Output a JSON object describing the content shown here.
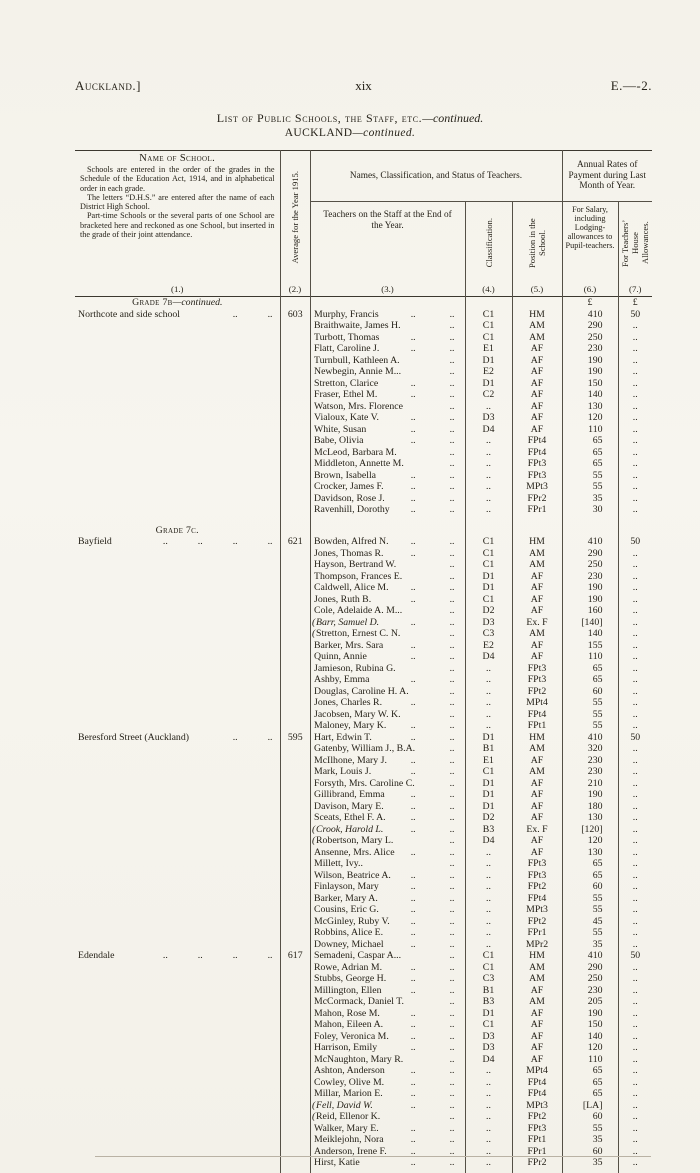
{
  "page_header": {
    "left": "Auckland.]",
    "center": "xix",
    "right": "E.—-2."
  },
  "title": {
    "main": "List of Public Schools, the Staff, etc.",
    "main_suffix": "—continued.",
    "sub": "AUCKLAND",
    "sub_suffix": "—continued."
  },
  "table": {
    "currency": "£",
    "columns": {
      "group_names": "Names, Classification, and Status of Teachers.",
      "group_payment": "Annual Rates of Payment during Last Month of Year.",
      "c1": {
        "title": "Name of School.",
        "notes": [
          "Schools are entered in the order of the grades in the Schedule of the Education Act, 1914, and in alphabetical order in each grade.",
          "The letters “D.H.S.” are entered after the name of each District High School.",
          "Part-time Schools or the several parts of one School are bracketed here and reckoned as one School, but inserted in the grade of their joint attendance."
        ],
        "num": "(1.)"
      },
      "c2": {
        "title": "Average for the Year 1915.",
        "num": "(2.)"
      },
      "c3": {
        "title": "Teachers on the Staff at the End of the Year.",
        "num": "(3.)"
      },
      "c4": {
        "title": "Classification.",
        "num": "(4.)"
      },
      "c5": {
        "title": "Position in the School.",
        "num": "(5.)"
      },
      "c6": {
        "title": "For Salary, including Lodging-allowances to Pupil-teachers.",
        "num": "(6.)"
      },
      "c7": {
        "title": "For Teachers’ House Allowances.",
        "num": "(7.)"
      }
    },
    "sections": [
      {
        "heading": {
          "label": "Grade 7b",
          "suffix": "—continued.",
          "show_currency": true
        },
        "schools": [
          {
            "name": "Northcote and side school",
            "dots": ".. ..",
            "average": "603",
            "teachers": [
              {
                "name": "Murphy, Francis",
                "dots": ".. ..",
                "cls": "C1",
                "pos": "HM",
                "salary": "410",
                "house": "50"
              },
              {
                "name": "Braithwaite, James H.",
                "dots": "..",
                "cls": "C1",
                "pos": "AM",
                "salary": "290",
                "house": ".."
              },
              {
                "name": "Turbott, Thomas",
                "dots": ".. ..",
                "cls": "C1",
                "pos": "AM",
                "salary": "250",
                "house": ".."
              },
              {
                "name": "Flatt, Caroline J.",
                "dots": ".. ..",
                "cls": "E1",
                "pos": "AF",
                "salary": "230",
                "house": ".."
              },
              {
                "name": "Turnbull, Kathleen A.",
                "dots": "..",
                "cls": "D1",
                "pos": "AF",
                "salary": "190",
                "house": ".."
              },
              {
                "name": "Newbegin, Annie M...",
                "dots": "..",
                "cls": "E2",
                "pos": "AF",
                "salary": "190",
                "house": ".."
              },
              {
                "name": "Stretton, Clarice",
                "dots": ".. ..",
                "cls": "D1",
                "pos": "AF",
                "salary": "150",
                "house": ".."
              },
              {
                "name": "Fraser, Ethel M.",
                "dots": ".. ..",
                "cls": "C2",
                "pos": "AF",
                "salary": "140",
                "house": ".."
              },
              {
                "name": "Watson, Mrs. Florence",
                "dots": "..",
                "cls": "..",
                "pos": "AF",
                "salary": "130",
                "house": ".."
              },
              {
                "name": "Vialoux, Kate V.",
                "dots": ".. ..",
                "cls": "D3",
                "pos": "AF",
                "salary": "120",
                "house": ".."
              },
              {
                "name": "White, Susan",
                "dots": ".. ..",
                "cls": "D4",
                "pos": "AF",
                "salary": "110",
                "house": ".."
              },
              {
                "name": "Babe, Olivia",
                "dots": ".. ..",
                "cls": "..",
                "pos": "FPt4",
                "salary": "65",
                "house": ".."
              },
              {
                "name": "McLeod, Barbara M.",
                "dots": "..",
                "cls": "..",
                "pos": "FPt4",
                "salary": "65",
                "house": ".."
              },
              {
                "name": "Middleton, Annette M.",
                "dots": "..",
                "cls": "..",
                "pos": "FPt3",
                "salary": "65",
                "house": ".."
              },
              {
                "name": "Brown, Isabella",
                "dots": ".. ..",
                "cls": "..",
                "pos": "FPt3",
                "salary": "55",
                "house": ".."
              },
              {
                "name": "Crocker, James F.",
                "dots": ".. ..",
                "cls": "..",
                "pos": "MPt3",
                "salary": "55",
                "house": ".."
              },
              {
                "name": "Davidson, Rose J.",
                "dots": ".. ..",
                "cls": "..",
                "pos": "FPr2",
                "salary": "35",
                "house": ".."
              },
              {
                "name": "Ravenhill, Dorothy",
                "dots": ".. ..",
                "cls": "..",
                "pos": "FPr1",
                "salary": "30",
                "house": ".."
              }
            ]
          }
        ]
      },
      {
        "heading": {
          "label": "Grade 7c.",
          "suffix": "",
          "show_currency": false
        },
        "schools": [
          {
            "name": "Bayfield",
            "dots": ".. .. .. ..",
            "average": "621",
            "teachers": [
              {
                "name": "Bowden, Alfred N.",
                "dots": ".. ..",
                "cls": "C1",
                "pos": "HM",
                "salary": "410",
                "house": "50"
              },
              {
                "name": "Jones, Thomas R.",
                "dots": ".. ..",
                "cls": "C1",
                "pos": "AM",
                "salary": "290",
                "house": ".."
              },
              {
                "name": "Hayson, Bertrand W.",
                "dots": "..",
                "cls": "C1",
                "pos": "AM",
                "salary": "250",
                "house": ".."
              },
              {
                "name": "Thompson, Frances E.",
                "dots": "..",
                "cls": "D1",
                "pos": "AF",
                "salary": "230",
                "house": ".."
              },
              {
                "name": "Caldwell, Alice M.",
                "dots": ".. ..",
                "cls": "D1",
                "pos": "AF",
                "salary": "190",
                "house": ".."
              },
              {
                "name": "Jones, Ruth B.",
                "dots": ".. ..",
                "cls": "C1",
                "pos": "AF",
                "salary": "190",
                "house": ".."
              },
              {
                "name": "Cole, Adelaide A. M...",
                "dots": "..",
                "cls": "D2",
                "pos": "AF",
                "salary": "160",
                "house": ".."
              },
              {
                "name": "Barr, Samuel D.",
                "dots": ".. ..",
                "cls": "D3",
                "pos": "Ex. F",
                "salary": "[140]",
                "house": "..",
                "italic": true,
                "bracket": true
              },
              {
                "name": "Stretton, Ernest C. N.",
                "dots": "..",
                "cls": "C3",
                "pos": "AM",
                "salary": "140",
                "house": "..",
                "bracket": true
              },
              {
                "name": "Barker, Mrs. Sara",
                "dots": ".. ..",
                "cls": "E2",
                "pos": "AF",
                "salary": "155",
                "house": ".."
              },
              {
                "name": "Quinn, Annie",
                "dots": ".. ..",
                "cls": "D4",
                "pos": "AF",
                "salary": "110",
                "house": ".."
              },
              {
                "name": "Jamieson, Rubina G.",
                "dots": "..",
                "cls": "..",
                "pos": "FPt3",
                "salary": "65",
                "house": ".."
              },
              {
                "name": "Ashby, Emma",
                "dots": ".. ..",
                "cls": "..",
                "pos": "FPt3",
                "salary": "65",
                "house": ".."
              },
              {
                "name": "Douglas, Caroline H. A.",
                "dots": "..",
                "cls": "..",
                "pos": "FPt2",
                "salary": "60",
                "house": ".."
              },
              {
                "name": "Jones, Charles R.",
                "dots": ".. ..",
                "cls": "..",
                "pos": "MPt4",
                "salary": "55",
                "house": ".."
              },
              {
                "name": "Jacobsen, Mary W. K.",
                "dots": "..",
                "cls": "..",
                "pos": "FPt4",
                "salary": "55",
                "house": ".."
              },
              {
                "name": "Maloney, Mary K.",
                "dots": ".. ..",
                "cls": "..",
                "pos": "FPt1",
                "salary": "55",
                "house": ".."
              }
            ]
          },
          {
            "name": "Beresford Street (Auckland)",
            "dots": ".. ..",
            "average": "595",
            "teachers": [
              {
                "name": "Hart, Edwin T.",
                "dots": ".. ..",
                "cls": "D1",
                "pos": "HM",
                "salary": "410",
                "house": "50"
              },
              {
                "name": "Gatenby, William J., B.A.",
                "dots": "..",
                "cls": "B1",
                "pos": "AM",
                "salary": "320",
                "house": ".."
              },
              {
                "name": "McIlhone, Mary J.",
                "dots": ".. ..",
                "cls": "E1",
                "pos": "AF",
                "salary": "230",
                "house": ".."
              },
              {
                "name": "Mark, Louis J.",
                "dots": ".. ..",
                "cls": "C1",
                "pos": "AM",
                "salary": "230",
                "house": ".."
              },
              {
                "name": "Forsyth, Mrs. Caroline C.",
                "dots": "..",
                "cls": "D1",
                "pos": "AF",
                "salary": "210",
                "house": ".."
              },
              {
                "name": "Gillibrand, Emma",
                "dots": ".. ..",
                "cls": "D1",
                "pos": "AF",
                "salary": "190",
                "house": ".."
              },
              {
                "name": "Davison, Mary E.",
                "dots": ".. ..",
                "cls": "D1",
                "pos": "AF",
                "salary": "180",
                "house": ".."
              },
              {
                "name": "Sceats, Ethel F. A.",
                "dots": ".. ..",
                "cls": "D2",
                "pos": "AF",
                "salary": "130",
                "house": ".."
              },
              {
                "name": "Crook, Harold L.",
                "dots": ".. ..",
                "cls": "B3",
                "pos": "Ex. F",
                "salary": "[120]",
                "house": "..",
                "italic": true,
                "bracket": true
              },
              {
                "name": "Robertson, Mary L.",
                "dots": "..",
                "cls": "D4",
                "pos": "AF",
                "salary": "120",
                "house": "..",
                "bracket": true
              },
              {
                "name": "Ansenne, Mrs. Alice",
                "dots": ".. ..",
                "cls": "..",
                "pos": "AF",
                "salary": "130",
                "house": ".."
              },
              {
                "name": "Millett, Ivy..",
                "dots": "..",
                "cls": "..",
                "pos": "FPt3",
                "salary": "65",
                "house": ".."
              },
              {
                "name": "Wilson, Beatrice A.",
                "dots": ".. ..",
                "cls": "..",
                "pos": "FPt3",
                "salary": "65",
                "house": ".."
              },
              {
                "name": "Finlayson, Mary",
                "dots": ".. ..",
                "cls": "..",
                "pos": "FPt2",
                "salary": "60",
                "house": ".."
              },
              {
                "name": "Barker, Mary A.",
                "dots": ".. ..",
                "cls": "..",
                "pos": "FPt4",
                "salary": "55",
                "house": ".."
              },
              {
                "name": "Cousins, Eric G.",
                "dots": ".. ..",
                "cls": "..",
                "pos": "MPt3",
                "salary": "55",
                "house": ".."
              },
              {
                "name": "McGinley, Ruby V.",
                "dots": ".. ..",
                "cls": "..",
                "pos": "FPt2",
                "salary": "45",
                "house": ".."
              },
              {
                "name": "Robbins, Alice E.",
                "dots": ".. ..",
                "cls": "..",
                "pos": "FPr1",
                "salary": "55",
                "house": ".."
              },
              {
                "name": "Downey, Michael",
                "dots": ".. ..",
                "cls": "..",
                "pos": "MPr2",
                "salary": "35",
                "house": ".."
              }
            ]
          },
          {
            "name": "Edendale",
            "dots": ".. .. .. ..",
            "average": "617",
            "teachers": [
              {
                "name": "Semadeni, Caspar A...",
                "dots": "..",
                "cls": "C1",
                "pos": "HM",
                "salary": "410",
                "house": "50"
              },
              {
                "name": "Rowe, Adrian M.",
                "dots": ".. ..",
                "cls": "C1",
                "pos": "AM",
                "salary": "290",
                "house": ".."
              },
              {
                "name": "Stubbs, George H.",
                "dots": ".. ..",
                "cls": "C3",
                "pos": "AM",
                "salary": "250",
                "house": ".."
              },
              {
                "name": "Millington, Ellen",
                "dots": ".. ..",
                "cls": "B1",
                "pos": "AF",
                "salary": "230",
                "house": ".."
              },
              {
                "name": "McCormack, Daniel T.",
                "dots": "..",
                "cls": "B3",
                "pos": "AM",
                "salary": "205",
                "house": ".."
              },
              {
                "name": "Mahon, Rose M.",
                "dots": ".. ..",
                "cls": "D1",
                "pos": "AF",
                "salary": "190",
                "house": ".."
              },
              {
                "name": "Mahon, Eileen A.",
                "dots": ".. ..",
                "cls": "C1",
                "pos": "AF",
                "salary": "150",
                "house": ".."
              },
              {
                "name": "Foley, Veronica M.",
                "dots": ".. ..",
                "cls": "D3",
                "pos": "AF",
                "salary": "140",
                "house": ".."
              },
              {
                "name": "Harrison, Emily",
                "dots": ".. ..",
                "cls": "D3",
                "pos": "AF",
                "salary": "120",
                "house": ".."
              },
              {
                "name": "McNaughton, Mary R.",
                "dots": "..",
                "cls": "D4",
                "pos": "AF",
                "salary": "110",
                "house": ".."
              },
              {
                "name": "Ashton, Anderson",
                "dots": ".. ..",
                "cls": "..",
                "pos": "MPt4",
                "salary": "65",
                "house": ".."
              },
              {
                "name": "Cowley, Olive M.",
                "dots": ".. ..",
                "cls": "..",
                "pos": "FPt4",
                "salary": "65",
                "house": ".."
              },
              {
                "name": "Millar, Marion E.",
                "dots": ".. ..",
                "cls": "..",
                "pos": "FPt4",
                "salary": "65",
                "house": ".."
              },
              {
                "name": "Fell, David W.",
                "dots": ".. ..",
                "cls": "..",
                "pos": "MPt3",
                "salary": "[LA]",
                "house": "..",
                "italic": true,
                "bracket": true
              },
              {
                "name": "Reid, Ellenor K.",
                "dots": "..",
                "cls": "..",
                "pos": "FPt2",
                "salary": "60",
                "house": "..",
                "bracket": true
              },
              {
                "name": "Walker, Mary E.",
                "dots": ".. ..",
                "cls": "..",
                "pos": "FPt3",
                "salary": "55",
                "house": ".."
              },
              {
                "name": "Meiklejohn, Nora",
                "dots": ".. ..",
                "cls": "..",
                "pos": "FPt1",
                "salary": "35",
                "house": ".."
              },
              {
                "name": "Anderson, Irene F.",
                "dots": ".. ..",
                "cls": "..",
                "pos": "FPr1",
                "salary": "60",
                "house": ".."
              },
              {
                "name": "Hirst, Katie",
                "dots": ".. ..",
                "cls": "..",
                "pos": "FPr2",
                "salary": "35",
                "house": ".."
              }
            ]
          }
        ]
      }
    ]
  }
}
